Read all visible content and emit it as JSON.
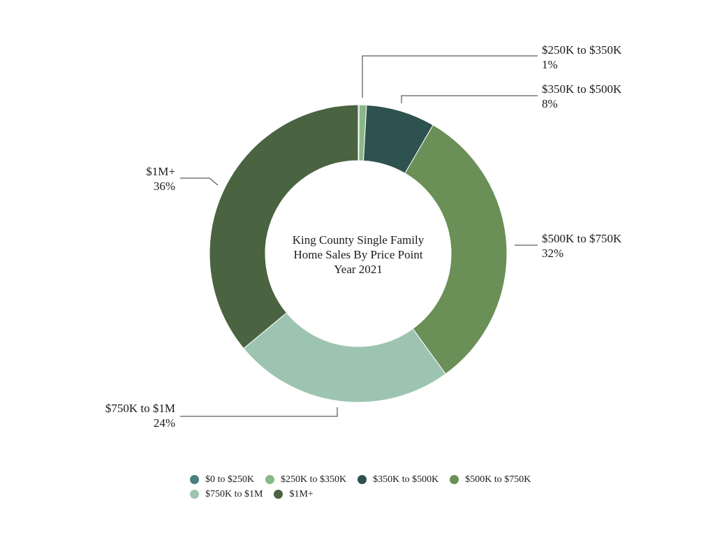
{
  "chart_data": {
    "type": "pie",
    "variant": "donut",
    "title_lines": [
      "King County Single Family",
      "Home Sales By Price Point",
      "Year 2021"
    ],
    "categories": [
      "$0 to $250K",
      "$250K to $350K",
      "$350K to $500K",
      "$500K to $750K",
      "$750K to $1M",
      "$1M+"
    ],
    "values": [
      0.1,
      0.8,
      7.5,
      31.6,
      24.0,
      36.0
    ],
    "colors": [
      "#4a7f7c",
      "#8ab889",
      "#2d524f",
      "#6a8f57",
      "#9dc4b0",
      "#4a6341"
    ],
    "legend_position": "bottom"
  },
  "callouts": {
    "c250": {
      "label": "$250K to $350K",
      "pct": "1%"
    },
    "c350": {
      "label": "$350K to $500K",
      "pct": "8%"
    },
    "c500": {
      "label": "$500K to $750K",
      "pct": "32%"
    },
    "c750": {
      "label": "$750K to $1M",
      "pct": "24%"
    },
    "c1m": {
      "label": "$1M+",
      "pct": "36%"
    }
  },
  "legend": {
    "items": [
      "$0 to $250K",
      "$250K to $350K",
      "$350K to $500K",
      "$500K to $750K",
      "$750K to $1M",
      "$1M+"
    ]
  }
}
